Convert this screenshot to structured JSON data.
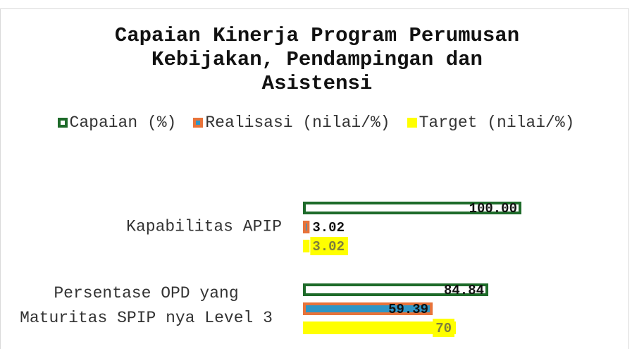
{
  "chart_data": {
    "type": "barh",
    "title": "Capaian Kinerja Program Perumusan Kebijakan, Pendampingan dan Asistensi",
    "categories": [
      "Kapabilitas APIP",
      "Persentase OPD yang Maturitas SPIP nya Level 3"
    ],
    "series": [
      {
        "name": "Capaian (%)",
        "color": "#ffffff",
        "edgecolor": "#1e6b2a",
        "values": [
          100,
          84.84
        ],
        "value_labels": [
          "100.00",
          "84.84"
        ]
      },
      {
        "name": "Realisasi (nilai/%)",
        "color": "#2e96c6",
        "edgecolor": "#e8733a",
        "values": [
          3.02,
          59.39
        ]
      },
      {
        "name": "Target (nilai/%)",
        "color": "#ffff00",
        "values": [
          3.02,
          70
        ]
      }
    ],
    "xlim": [
      0,
      100
    ]
  }
}
